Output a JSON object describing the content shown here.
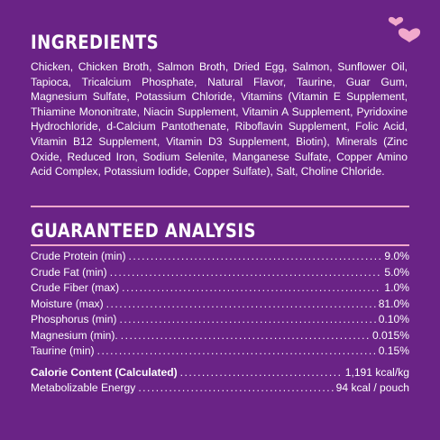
{
  "ingredients": {
    "title": "INGREDIENTS",
    "text": "Chicken, Chicken Broth, Salmon Broth, Dried Egg, Salmon, Sunflower Oil, Tapioca, Tricalcium Phosphate, Natural Flavor, Taurine, Guar Gum, Magnesium Sulfate, Potassium Chloride, Vitamins (Vitamin E Supplement, Thiamine Mononitrate, Niacin Supplement, Vitamin A Supplement, Pyridoxine Hydrochloride, d-Calcium Pantothenate, Riboflavin Supplement, Folic Acid, Vitamin B12 Supplement, Vitamin D3 Supplement, Biotin), Minerals (Zinc Oxide, Reduced Iron, Sodium Selenite, Manganese Sulfate, Copper Amino Acid Complex, Potassium Iodide, Copper Sulfate), Salt, Choline Chloride."
  },
  "analysis": {
    "title": "GUARANTEED ANALYSIS",
    "rows": [
      {
        "label": "Crude Protein (min)",
        "value": "9.0%"
      },
      {
        "label": "Crude Fat (min)",
        "value": "5.0%"
      },
      {
        "label": "Crude Fiber (max)",
        "value": "1.0%"
      },
      {
        "label": "Moisture (max)",
        "value": "81.0%"
      },
      {
        "label": "Phosphorus (min)",
        "value": "0.10%"
      },
      {
        "label": "Magnesium (min).",
        "value": "0.015%"
      },
      {
        "label": "Taurine (min)",
        "value": "0.15%"
      }
    ],
    "calorie": {
      "label": "Calorie Content (Calculated)",
      "value": "1,191 kcal/kg"
    },
    "energy": {
      "label": "Metabolizable Energy",
      "value": "94 kcal / pouch"
    }
  },
  "colors": {
    "background": "#6a2386",
    "accent_pink": "#f2a9cc",
    "text": "#ffffff"
  },
  "icons": [
    "hearts-icon"
  ]
}
